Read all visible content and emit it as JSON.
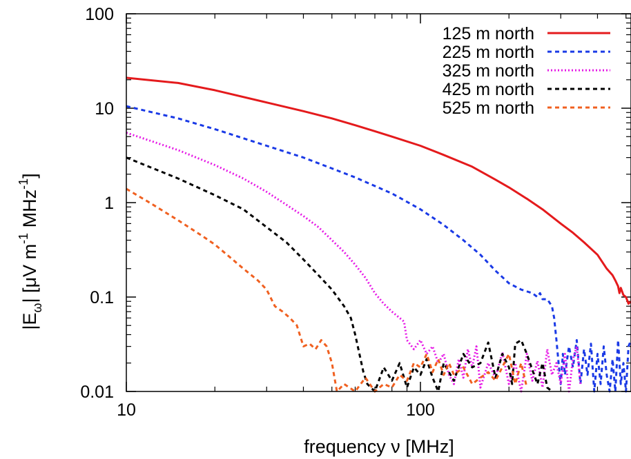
{
  "chart_data": {
    "type": "line",
    "xlabel": "frequency ν [MHz]",
    "ylabel": "|E",
    "ylabel_parts": {
      "e_sub": "ω",
      "rest": "| [μV m",
      "exp1": "-1",
      "mhz": " MHz",
      "exp2": "-1",
      "close": "]"
    },
    "x_scale": "log",
    "y_scale": "log",
    "xlim": [
      10,
      520
    ],
    "ylim": [
      0.01,
      100
    ],
    "x_ticks": [
      {
        "value": 10,
        "label": "10"
      },
      {
        "value": 100,
        "label": "100"
      }
    ],
    "y_ticks": [
      {
        "value": 0.01,
        "label": "0.01"
      },
      {
        "value": 0.1,
        "label": "0.1"
      },
      {
        "value": 1,
        "label": "1"
      },
      {
        "value": 10,
        "label": "10"
      },
      {
        "value": 100,
        "label": "100"
      }
    ],
    "grid": false,
    "legend_position": "top-right",
    "series": [
      {
        "name": "125 m north",
        "color": "#e41a1c",
        "dash": "solid",
        "points": [
          [
            10,
            21
          ],
          [
            15,
            18.5
          ],
          [
            20,
            15.5
          ],
          [
            30,
            11.5
          ],
          [
            40,
            9.3
          ],
          [
            50,
            7.8
          ],
          [
            60,
            6.6
          ],
          [
            70,
            5.7
          ],
          [
            80,
            5.0
          ],
          [
            100,
            4.0
          ],
          [
            120,
            3.2
          ],
          [
            150,
            2.4
          ],
          [
            180,
            1.75
          ],
          [
            200,
            1.45
          ],
          [
            230,
            1.1
          ],
          [
            260,
            0.85
          ],
          [
            300,
            0.6
          ],
          [
            330,
            0.48
          ],
          [
            360,
            0.38
          ],
          [
            400,
            0.28
          ],
          [
            430,
            0.2
          ],
          [
            450,
            0.17
          ],
          [
            460,
            0.15
          ],
          [
            470,
            0.13
          ],
          [
            475,
            0.11
          ],
          [
            480,
            0.125
          ],
          [
            490,
            0.105
          ],
          [
            500,
            0.1
          ],
          [
            510,
            0.085
          ],
          [
            520,
            0.09
          ]
        ]
      },
      {
        "name": "225 m north",
        "color": "#1a3ae6",
        "dash": "dashed",
        "points": [
          [
            10,
            10.5
          ],
          [
            15,
            7.8
          ],
          [
            20,
            6.0
          ],
          [
            30,
            4.0
          ],
          [
            40,
            3.0
          ],
          [
            50,
            2.3
          ],
          [
            60,
            1.85
          ],
          [
            70,
            1.5
          ],
          [
            80,
            1.25
          ],
          [
            100,
            0.85
          ],
          [
            120,
            0.58
          ],
          [
            140,
            0.4
          ],
          [
            160,
            0.28
          ],
          [
            180,
            0.19
          ],
          [
            200,
            0.14
          ],
          [
            220,
            0.12
          ],
          [
            240,
            0.11
          ],
          [
            250,
            0.1
          ],
          [
            255,
            0.11
          ],
          [
            260,
            0.095
          ],
          [
            270,
            0.095
          ],
          [
            280,
            0.08
          ],
          [
            285,
            0.06
          ],
          [
            290,
            0.035
          ],
          [
            295,
            0.02
          ],
          [
            300,
            0.012
          ],
          [
            305,
            0.025
          ],
          [
            310,
            0.015
          ],
          [
            320,
            0.03
          ],
          [
            330,
            0.018
          ],
          [
            340,
            0.035
          ],
          [
            350,
            0.012
          ],
          [
            360,
            0.028
          ],
          [
            370,
            0.015
          ],
          [
            380,
            0.032
          ],
          [
            390,
            0.01
          ],
          [
            400,
            0.025
          ],
          [
            410,
            0.012
          ],
          [
            420,
            0.03
          ],
          [
            430,
            0.015
          ],
          [
            440,
            0.01
          ],
          [
            450,
            0.022
          ],
          [
            460,
            0.01
          ],
          [
            470,
            0.035
          ],
          [
            480,
            0.012
          ],
          [
            490,
            0.02
          ],
          [
            500,
            0.01
          ],
          [
            510,
            0.03
          ],
          [
            520,
            0.035
          ]
        ]
      },
      {
        "name": "325 m north",
        "color": "#e61ae6",
        "dash": "dotted",
        "points": [
          [
            10,
            5.5
          ],
          [
            15,
            3.6
          ],
          [
            20,
            2.5
          ],
          [
            25,
            1.8
          ],
          [
            30,
            1.3
          ],
          [
            35,
            0.95
          ],
          [
            40,
            0.72
          ],
          [
            45,
            0.55
          ],
          [
            50,
            0.4
          ],
          [
            55,
            0.3
          ],
          [
            60,
            0.22
          ],
          [
            65,
            0.16
          ],
          [
            70,
            0.11
          ],
          [
            75,
            0.085
          ],
          [
            80,
            0.07
          ],
          [
            85,
            0.06
          ],
          [
            88,
            0.055
          ],
          [
            90,
            0.035
          ],
          [
            95,
            0.028
          ],
          [
            100,
            0.035
          ],
          [
            105,
            0.025
          ],
          [
            110,
            0.03
          ],
          [
            115,
            0.02
          ],
          [
            120,
            0.025
          ],
          [
            125,
            0.015
          ],
          [
            130,
            0.012
          ],
          [
            135,
            0.022
          ],
          [
            140,
            0.014
          ],
          [
            145,
            0.028
          ],
          [
            150,
            0.018
          ],
          [
            155,
            0.03
          ],
          [
            160,
            0.011
          ],
          [
            170,
            0.02
          ],
          [
            180,
            0.014
          ],
          [
            190,
            0.026
          ],
          [
            200,
            0.012
          ],
          [
            210,
            0.02
          ],
          [
            220,
            0.01
          ],
          [
            230,
            0.025
          ],
          [
            240,
            0.013
          ],
          [
            250,
            0.021
          ],
          [
            260,
            0.011
          ],
          [
            270,
            0.028
          ],
          [
            280,
            0.015
          ],
          [
            290,
            0.02
          ],
          [
            300,
            0.012
          ],
          [
            310,
            0.025
          ],
          [
            320,
            0.01
          ],
          [
            330,
            0.022
          ],
          [
            340,
            0.03
          ],
          [
            350,
            0.012
          ]
        ]
      },
      {
        "name": "425 m north",
        "color": "#000000",
        "dash": "dashed",
        "points": [
          [
            10,
            3.0
          ],
          [
            15,
            1.8
          ],
          [
            20,
            1.2
          ],
          [
            25,
            0.85
          ],
          [
            30,
            0.55
          ],
          [
            35,
            0.38
          ],
          [
            40,
            0.25
          ],
          [
            45,
            0.17
          ],
          [
            50,
            0.12
          ],
          [
            55,
            0.08
          ],
          [
            58,
            0.06
          ],
          [
            60,
            0.04
          ],
          [
            62,
            0.025
          ],
          [
            64,
            0.016
          ],
          [
            66,
            0.012
          ],
          [
            70,
            0.01
          ],
          [
            75,
            0.018
          ],
          [
            80,
            0.013
          ],
          [
            85,
            0.02
          ],
          [
            90,
            0.011
          ],
          [
            95,
            0.018
          ],
          [
            100,
            0.015
          ],
          [
            105,
            0.022
          ],
          [
            110,
            0.014
          ],
          [
            115,
            0.01
          ],
          [
            120,
            0.02
          ],
          [
            125,
            0.016
          ],
          [
            130,
            0.013
          ],
          [
            140,
            0.025
          ],
          [
            150,
            0.018
          ],
          [
            160,
            0.02
          ],
          [
            170,
            0.033
          ],
          [
            180,
            0.014
          ],
          [
            190,
            0.025
          ],
          [
            200,
            0.018
          ],
          [
            205,
            0.012
          ],
          [
            210,
            0.032
          ],
          [
            220,
            0.035
          ],
          [
            230,
            0.025
          ],
          [
            240,
            0.017
          ],
          [
            250,
            0.012
          ],
          [
            260,
            0.02
          ],
          [
            270,
            0.011
          ],
          [
            280,
            0.01
          ]
        ]
      },
      {
        "name": "525 m north",
        "color": "#f06020",
        "dash": "dashed",
        "points": [
          [
            10,
            1.4
          ],
          [
            12,
            1.0
          ],
          [
            15,
            0.65
          ],
          [
            18,
            0.45
          ],
          [
            20,
            0.36
          ],
          [
            22,
            0.28
          ],
          [
            25,
            0.2
          ],
          [
            28,
            0.15
          ],
          [
            30,
            0.12
          ],
          [
            32,
            0.08
          ],
          [
            34,
            0.07
          ],
          [
            36,
            0.06
          ],
          [
            38,
            0.05
          ],
          [
            40,
            0.03
          ],
          [
            42,
            0.032
          ],
          [
            44,
            0.028
          ],
          [
            46,
            0.035
          ],
          [
            48,
            0.03
          ],
          [
            50,
            0.02
          ],
          [
            52,
            0.01
          ],
          [
            55,
            0.012
          ],
          [
            60,
            0.01
          ],
          [
            65,
            0.014
          ],
          [
            70,
            0.01
          ],
          [
            75,
            0.012
          ],
          [
            80,
            0.011
          ],
          [
            85,
            0.015
          ],
          [
            90,
            0.013
          ],
          [
            95,
            0.02
          ],
          [
            100,
            0.018
          ],
          [
            105,
            0.025
          ],
          [
            110,
            0.016
          ],
          [
            115,
            0.022
          ],
          [
            120,
            0.015
          ],
          [
            125,
            0.02
          ],
          [
            130,
            0.015
          ],
          [
            140,
            0.018
          ],
          [
            150,
            0.012
          ],
          [
            160,
            0.014
          ],
          [
            170,
            0.016
          ],
          [
            180,
            0.013
          ],
          [
            200,
            0.025
          ],
          [
            210,
            0.012
          ],
          [
            220,
            0.02
          ],
          [
            230,
            0.011
          ]
        ]
      }
    ]
  }
}
